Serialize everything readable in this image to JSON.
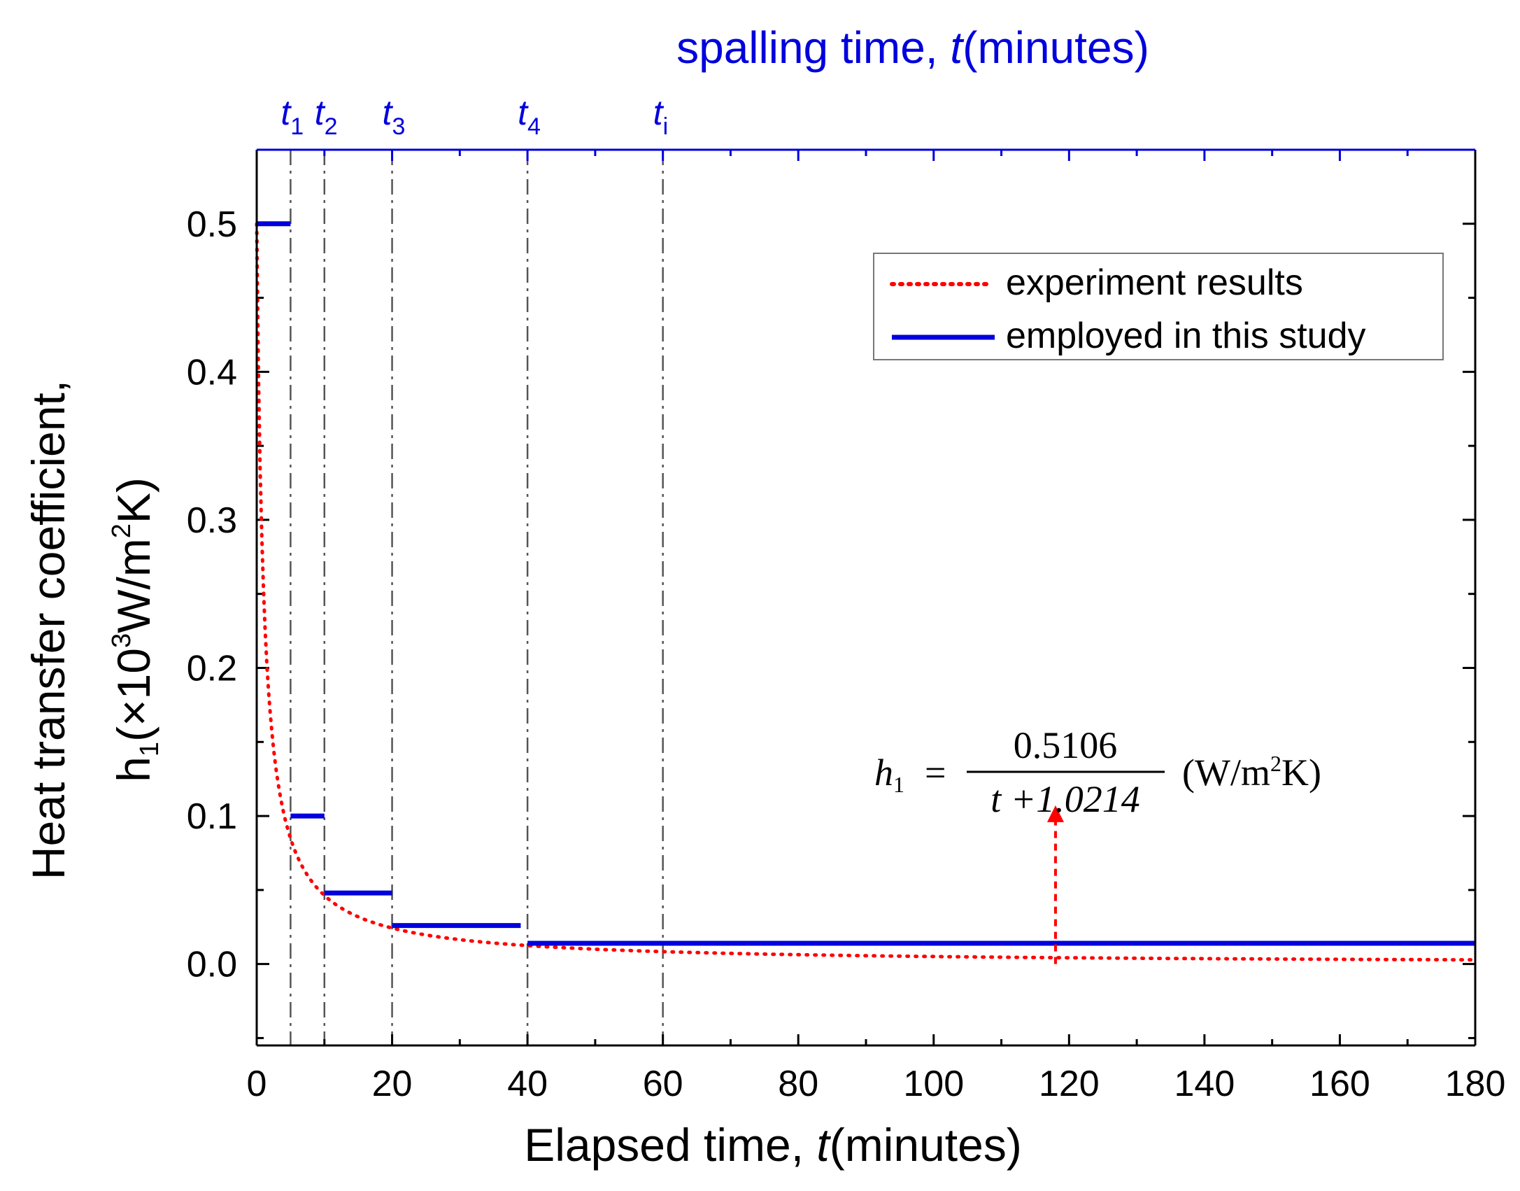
{
  "chart_data": {
    "type": "line",
    "xlabel_prefix": "Elapsed time, ",
    "xlabel_var": "t",
    "xlabel_suffix": "(minutes)",
    "ylabel_line1": "Heat transfer coefficient,",
    "ylabel_h": "h",
    "ylabel_h_sub": "1",
    "ylabel_paren_open": "(×10",
    "ylabel_exp": "3",
    "ylabel_unit": "W/m",
    "ylabel_unit_exp": "2",
    "ylabel_unit_end": "K)",
    "top_axis_title_prefix": "spalling time, ",
    "top_axis_title_var": "t",
    "top_axis_title_suffix": "(minutes)",
    "xlim": [
      0,
      180
    ],
    "ylim": [
      -0.055,
      0.55
    ],
    "x_ticks": [
      "0",
      "20",
      "40",
      "60",
      "80",
      "100",
      "120",
      "140",
      "160",
      "180"
    ],
    "y_ticks": [
      "0.0",
      "0.1",
      "0.2",
      "0.3",
      "0.4",
      "0.5"
    ],
    "spalling_markers": [
      {
        "x": 5,
        "var": "t",
        "sub": "1"
      },
      {
        "x": 10,
        "var": "t",
        "sub": "2"
      },
      {
        "x": 20,
        "var": "t",
        "sub": "3"
      },
      {
        "x": 40,
        "var": "t",
        "sub": "4"
      },
      {
        "x": 60,
        "var": "t",
        "sub": "i"
      }
    ],
    "series": [
      {
        "name": "experiment results",
        "style": "dotted",
        "color": "#ff0000",
        "formula": "0.5106/(t+1.0214)",
        "x_range": [
          0,
          180
        ]
      },
      {
        "name": "employed in this study",
        "style": "step",
        "color": "#0000dd",
        "segments": [
          {
            "x0": 0,
            "x1": 5,
            "y": 0.5
          },
          {
            "x0": 5,
            "x1": 10,
            "y": 0.1
          },
          {
            "x0": 10,
            "x1": 20,
            "y": 0.048
          },
          {
            "x0": 20,
            "x1": 39,
            "y": 0.026
          },
          {
            "x0": 40,
            "x1": 180,
            "y": 0.014
          }
        ]
      }
    ],
    "legend": {
      "position": "top-right",
      "entries": [
        "experiment results",
        "employed in this study"
      ]
    },
    "equation": {
      "lhs": "h",
      "lhs_sub": "1",
      "equals": "=",
      "numerator": "0.5106",
      "denominator": "t +1.0214",
      "unit_open": "(W/m",
      "unit_exp": "2",
      "unit_close": "K)"
    },
    "annotation_arrow": {
      "x": 118,
      "y_from": 0.0,
      "y_to": 0.11
    }
  },
  "colors": {
    "axis_blue": "#0000dd",
    "experiment_red": "#ff0000",
    "marker_gray": "#555555"
  }
}
